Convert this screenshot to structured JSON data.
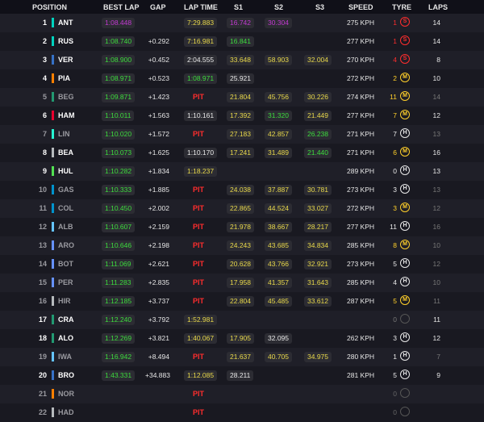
{
  "headers": {
    "position": "POSITION",
    "best_lap": "BEST LAP",
    "gap": "GAP",
    "lap_time": "LAP TIME",
    "s1": "S1",
    "s2": "S2",
    "s3": "S3",
    "speed": "SPEED",
    "tyre": "TYRE",
    "laps": "LAPS"
  },
  "colors": {
    "purple": "#c23ad0",
    "green": "#3ddc3d",
    "yellow": "#e8d84a",
    "pit": "#ff2d2d"
  },
  "rows": [
    {
      "pos": "1",
      "team_color": "#00d2be",
      "abbr": "ANT",
      "best": "1:08.448",
      "best_c": "purple",
      "gap": "",
      "lap": "7:29.883",
      "lap_c": "yellow",
      "s1": "16.742",
      "s1_c": "purple",
      "s2": "30.304",
      "s2_c": "purple",
      "s3": "",
      "s3_c": "",
      "speed": "275 KPH",
      "tyre_laps": "1",
      "tyre": "S",
      "tyre_c": "soft",
      "laps": "14",
      "dim": false
    },
    {
      "pos": "2",
      "team_color": "#00d2be",
      "abbr": "RUS",
      "best": "1:08.740",
      "best_c": "green",
      "gap": "+0.292",
      "lap": "7:16.981",
      "lap_c": "yellow",
      "s1": "16.841",
      "s1_c": "green",
      "s2": "",
      "s2_c": "",
      "s3": "",
      "s3_c": "",
      "speed": "277 KPH",
      "tyre_laps": "1",
      "tyre": "S",
      "tyre_c": "soft",
      "laps": "14",
      "dim": false
    },
    {
      "pos": "3",
      "team_color": "#3671c6",
      "abbr": "VER",
      "best": "1:08.900",
      "best_c": "green",
      "gap": "+0.452",
      "lap": "2:04.555",
      "lap_c": "",
      "s1": "33.648",
      "s1_c": "yellow",
      "s2": "58.903",
      "s2_c": "yellow",
      "s3": "32.004",
      "s3_c": "yellow",
      "speed": "270 KPH",
      "tyre_laps": "4",
      "tyre": "S",
      "tyre_c": "soft",
      "laps": "8",
      "dim": false
    },
    {
      "pos": "4",
      "team_color": "#ff8000",
      "abbr": "PIA",
      "best": "1:08.971",
      "best_c": "green",
      "gap": "+0.523",
      "lap": "1:08.971",
      "lap_c": "green",
      "s1": "25.921",
      "s1_c": "",
      "s2": "",
      "s2_c": "",
      "s3": "",
      "s3_c": "",
      "speed": "272 KPH",
      "tyre_laps": "2",
      "tyre": "M",
      "tyre_c": "medium",
      "laps": "10",
      "dim": false
    },
    {
      "pos": "5",
      "team_color": "#229971",
      "abbr": "BEG",
      "best": "1:09.871",
      "best_c": "green",
      "gap": "+1.423",
      "lap": "PIT",
      "lap_c": "pit",
      "s1": "21.804",
      "s1_c": "yellow",
      "s2": "45.756",
      "s2_c": "yellow",
      "s3": "30.226",
      "s3_c": "yellow",
      "speed": "274 KPH",
      "tyre_laps": "11",
      "tyre": "M",
      "tyre_c": "medium",
      "laps": "14",
      "dim": true
    },
    {
      "pos": "6",
      "team_color": "#e8002d",
      "abbr": "HAM",
      "best": "1:10.011",
      "best_c": "green",
      "gap": "+1.563",
      "lap": "1:10.161",
      "lap_c": "",
      "s1": "17.392",
      "s1_c": "yellow",
      "s2": "31.320",
      "s2_c": "green",
      "s3": "21.449",
      "s3_c": "yellow",
      "speed": "277 KPH",
      "tyre_laps": "7",
      "tyre": "M",
      "tyre_c": "medium",
      "laps": "12",
      "dim": false
    },
    {
      "pos": "7",
      "team_color": "#27f4d2",
      "abbr": "LIN",
      "best": "1:10.020",
      "best_c": "green",
      "gap": "+1.572",
      "lap": "PIT",
      "lap_c": "pit",
      "s1": "27.183",
      "s1_c": "yellow",
      "s2": "42.857",
      "s2_c": "yellow",
      "s3": "26.238",
      "s3_c": "green",
      "speed": "271 KPH",
      "tyre_laps": "7",
      "tyre": "H",
      "tyre_c": "hard",
      "laps": "13",
      "dim": true
    },
    {
      "pos": "8",
      "team_color": "#b6babd",
      "abbr": "BEA",
      "best": "1:10.073",
      "best_c": "green",
      "gap": "+1.625",
      "lap": "1:10.170",
      "lap_c": "",
      "s1": "17.241",
      "s1_c": "yellow",
      "s2": "31.489",
      "s2_c": "yellow",
      "s3": "21.440",
      "s3_c": "green",
      "speed": "271 KPH",
      "tyre_laps": "6",
      "tyre": "M",
      "tyre_c": "medium",
      "laps": "16",
      "dim": false
    },
    {
      "pos": "9",
      "team_color": "#52e252",
      "abbr": "HUL",
      "best": "1:10.282",
      "best_c": "green",
      "gap": "+1.834",
      "lap": "1:18.237",
      "lap_c": "yellow",
      "s1": "",
      "s1_c": "",
      "s2": "",
      "s2_c": "",
      "s3": "",
      "s3_c": "",
      "speed": "289 KPH",
      "tyre_laps": "0",
      "tyre": "H",
      "tyre_c": "hard",
      "laps": "13",
      "dim": false
    },
    {
      "pos": "10",
      "team_color": "#0093cc",
      "abbr": "GAS",
      "best": "1:10.333",
      "best_c": "green",
      "gap": "+1.885",
      "lap": "PIT",
      "lap_c": "pit",
      "s1": "24.038",
      "s1_c": "yellow",
      "s2": "37.887",
      "s2_c": "yellow",
      "s3": "30.781",
      "s3_c": "yellow",
      "speed": "273 KPH",
      "tyre_laps": "3",
      "tyre": "H",
      "tyre_c": "hard",
      "laps": "13",
      "dim": true
    },
    {
      "pos": "11",
      "team_color": "#0093cc",
      "abbr": "COL",
      "best": "1:10.450",
      "best_c": "green",
      "gap": "+2.002",
      "lap": "PIT",
      "lap_c": "pit",
      "s1": "22.865",
      "s1_c": "yellow",
      "s2": "44.524",
      "s2_c": "yellow",
      "s3": "33.027",
      "s3_c": "yellow",
      "speed": "272 KPH",
      "tyre_laps": "3",
      "tyre": "M",
      "tyre_c": "medium",
      "laps": "12",
      "dim": true
    },
    {
      "pos": "12",
      "team_color": "#64c4ff",
      "abbr": "ALB",
      "best": "1:10.607",
      "best_c": "green",
      "gap": "+2.159",
      "lap": "PIT",
      "lap_c": "pit",
      "s1": "21.978",
      "s1_c": "yellow",
      "s2": "38.667",
      "s2_c": "yellow",
      "s3": "28.217",
      "s3_c": "yellow",
      "speed": "277 KPH",
      "tyre_laps": "11",
      "tyre": "H",
      "tyre_c": "hard",
      "laps": "16",
      "dim": true
    },
    {
      "pos": "13",
      "team_color": "#6692ff",
      "abbr": "ARO",
      "best": "1:10.646",
      "best_c": "green",
      "gap": "+2.198",
      "lap": "PIT",
      "lap_c": "pit",
      "s1": "24.243",
      "s1_c": "yellow",
      "s2": "43.685",
      "s2_c": "yellow",
      "s3": "34.834",
      "s3_c": "yellow",
      "speed": "285 KPH",
      "tyre_laps": "8",
      "tyre": "M",
      "tyre_c": "medium",
      "laps": "10",
      "dim": true
    },
    {
      "pos": "14",
      "team_color": "#6692ff",
      "abbr": "BOT",
      "best": "1:11.069",
      "best_c": "green",
      "gap": "+2.621",
      "lap": "PIT",
      "lap_c": "pit",
      "s1": "20.628",
      "s1_c": "yellow",
      "s2": "43.766",
      "s2_c": "yellow",
      "s3": "32.921",
      "s3_c": "yellow",
      "speed": "273 KPH",
      "tyre_laps": "5",
      "tyre": "H",
      "tyre_c": "hard",
      "laps": "12",
      "dim": true
    },
    {
      "pos": "15",
      "team_color": "#6692ff",
      "abbr": "PER",
      "best": "1:11.283",
      "best_c": "green",
      "gap": "+2.835",
      "lap": "PIT",
      "lap_c": "pit",
      "s1": "17.958",
      "s1_c": "yellow",
      "s2": "41.357",
      "s2_c": "yellow",
      "s3": "31.643",
      "s3_c": "yellow",
      "speed": "285 KPH",
      "tyre_laps": "4",
      "tyre": "H",
      "tyre_c": "hard",
      "laps": "10",
      "dim": true
    },
    {
      "pos": "16",
      "team_color": "#b6babd",
      "abbr": "HIR",
      "best": "1:12.185",
      "best_c": "green",
      "gap": "+3.737",
      "lap": "PIT",
      "lap_c": "pit",
      "s1": "22.804",
      "s1_c": "yellow",
      "s2": "45.485",
      "s2_c": "yellow",
      "s3": "33.612",
      "s3_c": "yellow",
      "speed": "287 KPH",
      "tyre_laps": "5",
      "tyre": "M",
      "tyre_c": "medium",
      "laps": "11",
      "dim": true
    },
    {
      "pos": "17",
      "team_color": "#229971",
      "abbr": "CRA",
      "best": "1:12.240",
      "best_c": "green",
      "gap": "+3.792",
      "lap": "1:52.981",
      "lap_c": "yellow",
      "s1": "",
      "s1_c": "",
      "s2": "",
      "s2_c": "",
      "s3": "",
      "s3_c": "",
      "speed": "",
      "tyre_laps": "0",
      "tyre": "",
      "tyre_c": "unknown",
      "laps": "11",
      "dim": false
    },
    {
      "pos": "18",
      "team_color": "#229971",
      "abbr": "ALO",
      "best": "1:12.269",
      "best_c": "green",
      "gap": "+3.821",
      "lap": "1:40.067",
      "lap_c": "yellow",
      "s1": "17.905",
      "s1_c": "yellow",
      "s2": "32.095",
      "s2_c": "",
      "s3": "",
      "s3_c": "",
      "speed": "262 KPH",
      "tyre_laps": "3",
      "tyre": "H",
      "tyre_c": "hard",
      "laps": "12",
      "dim": false
    },
    {
      "pos": "19",
      "team_color": "#64c4ff",
      "abbr": "IWA",
      "best": "1:16.942",
      "best_c": "green",
      "gap": "+8.494",
      "lap": "PIT",
      "lap_c": "pit",
      "s1": "21.637",
      "s1_c": "yellow",
      "s2": "40.705",
      "s2_c": "yellow",
      "s3": "34.975",
      "s3_c": "yellow",
      "speed": "280 KPH",
      "tyre_laps": "1",
      "tyre": "H",
      "tyre_c": "hard",
      "laps": "7",
      "dim": true
    },
    {
      "pos": "20",
      "team_color": "#3671c6",
      "abbr": "BRO",
      "best": "1:43.331",
      "best_c": "green",
      "gap": "+34.883",
      "lap": "1:12.085",
      "lap_c": "yellow",
      "s1": "28.211",
      "s1_c": "",
      "s2": "",
      "s2_c": "",
      "s3": "",
      "s3_c": "",
      "speed": "281 KPH",
      "tyre_laps": "5",
      "tyre": "H",
      "tyre_c": "hard",
      "laps": "9",
      "dim": false
    },
    {
      "pos": "21",
      "team_color": "#ff8000",
      "abbr": "NOR",
      "best": "",
      "best_c": "",
      "gap": "",
      "lap": "PIT",
      "lap_c": "pit",
      "s1": "",
      "s1_c": "",
      "s2": "",
      "s2_c": "",
      "s3": "",
      "s3_c": "",
      "speed": "",
      "tyre_laps": "0",
      "tyre": "",
      "tyre_c": "unknown",
      "laps": "",
      "dim": true
    },
    {
      "pos": "22",
      "team_color": "#b6babd",
      "abbr": "HAD",
      "best": "",
      "best_c": "",
      "gap": "",
      "lap": "PIT",
      "lap_c": "pit",
      "s1": "",
      "s1_c": "",
      "s2": "",
      "s2_c": "",
      "s3": "",
      "s3_c": "",
      "speed": "",
      "tyre_laps": "0",
      "tyre": "",
      "tyre_c": "unknown",
      "laps": "",
      "dim": true
    }
  ]
}
